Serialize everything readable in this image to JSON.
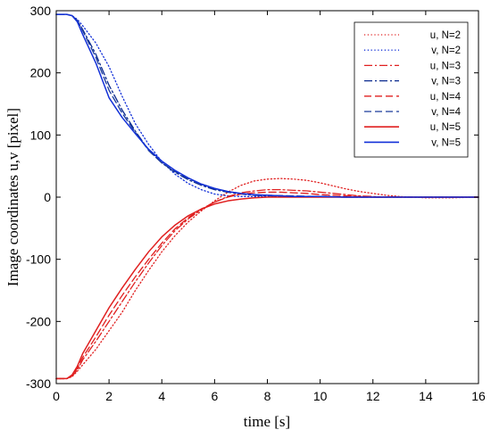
{
  "chart_data": {
    "type": "line",
    "xlabel": "time [s]",
    "ylabel": "Image coordinates u,v [pixel]",
    "xlim": [
      0,
      16
    ],
    "ylim": [
      -300,
      300
    ],
    "xticks": [
      0,
      2,
      4,
      6,
      8,
      10,
      12,
      14,
      16
    ],
    "yticks": [
      -300,
      -200,
      -100,
      0,
      100,
      200,
      300
    ],
    "x_tick_labels": [
      "0",
      "2",
      "4",
      "6",
      "8",
      "10",
      "12",
      "14",
      "16"
    ],
    "y_tick_labels": [
      "-300",
      "-200",
      "-100",
      "0",
      "100",
      "200",
      "300"
    ],
    "grid": false,
    "legend_position": "top-right",
    "colors": {
      "u": "#e02020",
      "v": "#1230d8"
    },
    "series": [
      {
        "name": "u, N=2",
        "color": "#e02020",
        "style": "dotted",
        "x": [
          0,
          0.4,
          0.6,
          0.8,
          1,
          1.5,
          2,
          2.5,
          3,
          3.5,
          4,
          4.5,
          5,
          5.5,
          6,
          6.5,
          7,
          7.5,
          8,
          8.5,
          9,
          9.5,
          10,
          10.5,
          11,
          11.5,
          12,
          12.5,
          13,
          13.5,
          14,
          15,
          16
        ],
        "y": [
          -292,
          -292,
          -289,
          -280,
          -270,
          -245,
          -215,
          -185,
          -150,
          -118,
          -88,
          -62,
          -40,
          -22,
          -6,
          8,
          19,
          26,
          29,
          30,
          29,
          27,
          23,
          18,
          13,
          9,
          6,
          3,
          1,
          0,
          -1,
          -1,
          0
        ]
      },
      {
        "name": "v, N=2",
        "color": "#1230d8",
        "style": "dotted",
        "x": [
          0,
          0.4,
          0.6,
          0.8,
          1,
          1.5,
          2,
          2.5,
          3,
          3.5,
          4,
          4.5,
          5,
          5.5,
          6,
          6.5,
          7,
          7.5,
          8,
          8.5,
          9,
          10,
          11,
          12,
          13,
          14,
          15,
          16
        ],
        "y": [
          294,
          294,
          292,
          286,
          276,
          248,
          210,
          162,
          118,
          85,
          57,
          37,
          22,
          12,
          5,
          2,
          1,
          1,
          1,
          1,
          1,
          1,
          0,
          0,
          0,
          0,
          0,
          0
        ]
      },
      {
        "name": "u, N=3",
        "color": "#e02020",
        "style": "dashdot",
        "x": [
          0,
          0.4,
          0.6,
          0.8,
          1,
          1.5,
          2,
          2.5,
          3,
          3.5,
          4,
          4.5,
          5,
          5.5,
          6,
          6.5,
          7,
          7.5,
          8,
          8.5,
          9,
          9.5,
          10,
          10.5,
          11,
          11.5,
          12,
          12.5,
          13,
          14,
          15,
          16
        ],
        "y": [
          -292,
          -292,
          -288,
          -278,
          -262,
          -232,
          -200,
          -168,
          -136,
          -106,
          -78,
          -54,
          -35,
          -20,
          -8,
          1,
          7,
          10,
          12,
          12,
          11,
          10,
          8,
          6,
          4,
          2,
          1,
          0,
          0,
          0,
          0,
          0
        ]
      },
      {
        "name": "v, N=3",
        "color": "#0a2a8f",
        "style": "dashdot",
        "x": [
          0,
          0.4,
          0.6,
          0.8,
          1,
          1.5,
          2,
          2.5,
          3,
          3.5,
          4,
          4.5,
          5,
          5.5,
          6,
          6.5,
          7,
          7.5,
          8,
          9,
          10,
          11,
          12,
          13,
          14,
          15,
          16
        ],
        "y": [
          294,
          294,
          292,
          284,
          270,
          230,
          180,
          140,
          106,
          76,
          55,
          40,
          28,
          19,
          12,
          8,
          5,
          3,
          2,
          1,
          1,
          0,
          0,
          0,
          0,
          0,
          0
        ]
      },
      {
        "name": "u, N=4",
        "color": "#e02020",
        "style": "dashed",
        "x": [
          0,
          0.4,
          0.6,
          0.8,
          1,
          1.5,
          2,
          2.5,
          3,
          3.5,
          4,
          4.5,
          5,
          5.5,
          6,
          6.5,
          7,
          7.5,
          8,
          8.5,
          9,
          9.5,
          10,
          10.5,
          11,
          11.5,
          12,
          13,
          14,
          15,
          16
        ],
        "y": [
          -292,
          -292,
          -287,
          -275,
          -258,
          -225,
          -190,
          -158,
          -128,
          -100,
          -74,
          -51,
          -33,
          -19,
          -8,
          0,
          5,
          7,
          8,
          8,
          7,
          6,
          4,
          3,
          2,
          1,
          0,
          0,
          0,
          0,
          0
        ]
      },
      {
        "name": "v, N=4",
        "color": "#1a3a9a",
        "style": "dashed",
        "x": [
          0,
          0.4,
          0.6,
          0.8,
          1,
          1.5,
          2,
          2.5,
          3,
          3.5,
          4,
          4.5,
          5,
          5.5,
          6,
          6.5,
          7,
          7.5,
          8,
          9,
          10,
          11,
          12,
          13,
          14,
          15,
          16
        ],
        "y": [
          294,
          294,
          292,
          284,
          268,
          225,
          172,
          135,
          104,
          75,
          55,
          41,
          30,
          21,
          14,
          9,
          6,
          4,
          3,
          2,
          1,
          0,
          0,
          0,
          0,
          0,
          0
        ]
      },
      {
        "name": "u, N=5",
        "color": "#e02020",
        "style": "solid",
        "x": [
          0,
          0.4,
          0.6,
          0.8,
          1,
          1.5,
          2,
          2.5,
          3,
          3.5,
          4,
          4.5,
          5,
          5.5,
          6,
          6.5,
          7,
          7.5,
          8,
          9,
          10,
          11,
          12,
          13,
          14,
          15,
          16
        ],
        "y": [
          -292,
          -292,
          -286,
          -272,
          -252,
          -215,
          -178,
          -146,
          -116,
          -88,
          -64,
          -45,
          -30,
          -19,
          -11,
          -6,
          -3,
          -1,
          0,
          0,
          0,
          0,
          0,
          0,
          0,
          0,
          0
        ]
      },
      {
        "name": "v, N=5",
        "color": "#1230d8",
        "style": "solid",
        "x": [
          0,
          0.4,
          0.6,
          0.8,
          1,
          1.5,
          2,
          2.5,
          3,
          3.5,
          4,
          4.5,
          5,
          5.5,
          6,
          6.5,
          7,
          7.5,
          8,
          9,
          10,
          11,
          12,
          13,
          14,
          15,
          16
        ],
        "y": [
          294,
          294,
          292,
          282,
          262,
          216,
          160,
          128,
          102,
          77,
          58,
          43,
          31,
          21,
          14,
          9,
          6,
          4,
          3,
          1,
          1,
          0,
          0,
          0,
          0,
          0,
          0
        ]
      }
    ]
  }
}
